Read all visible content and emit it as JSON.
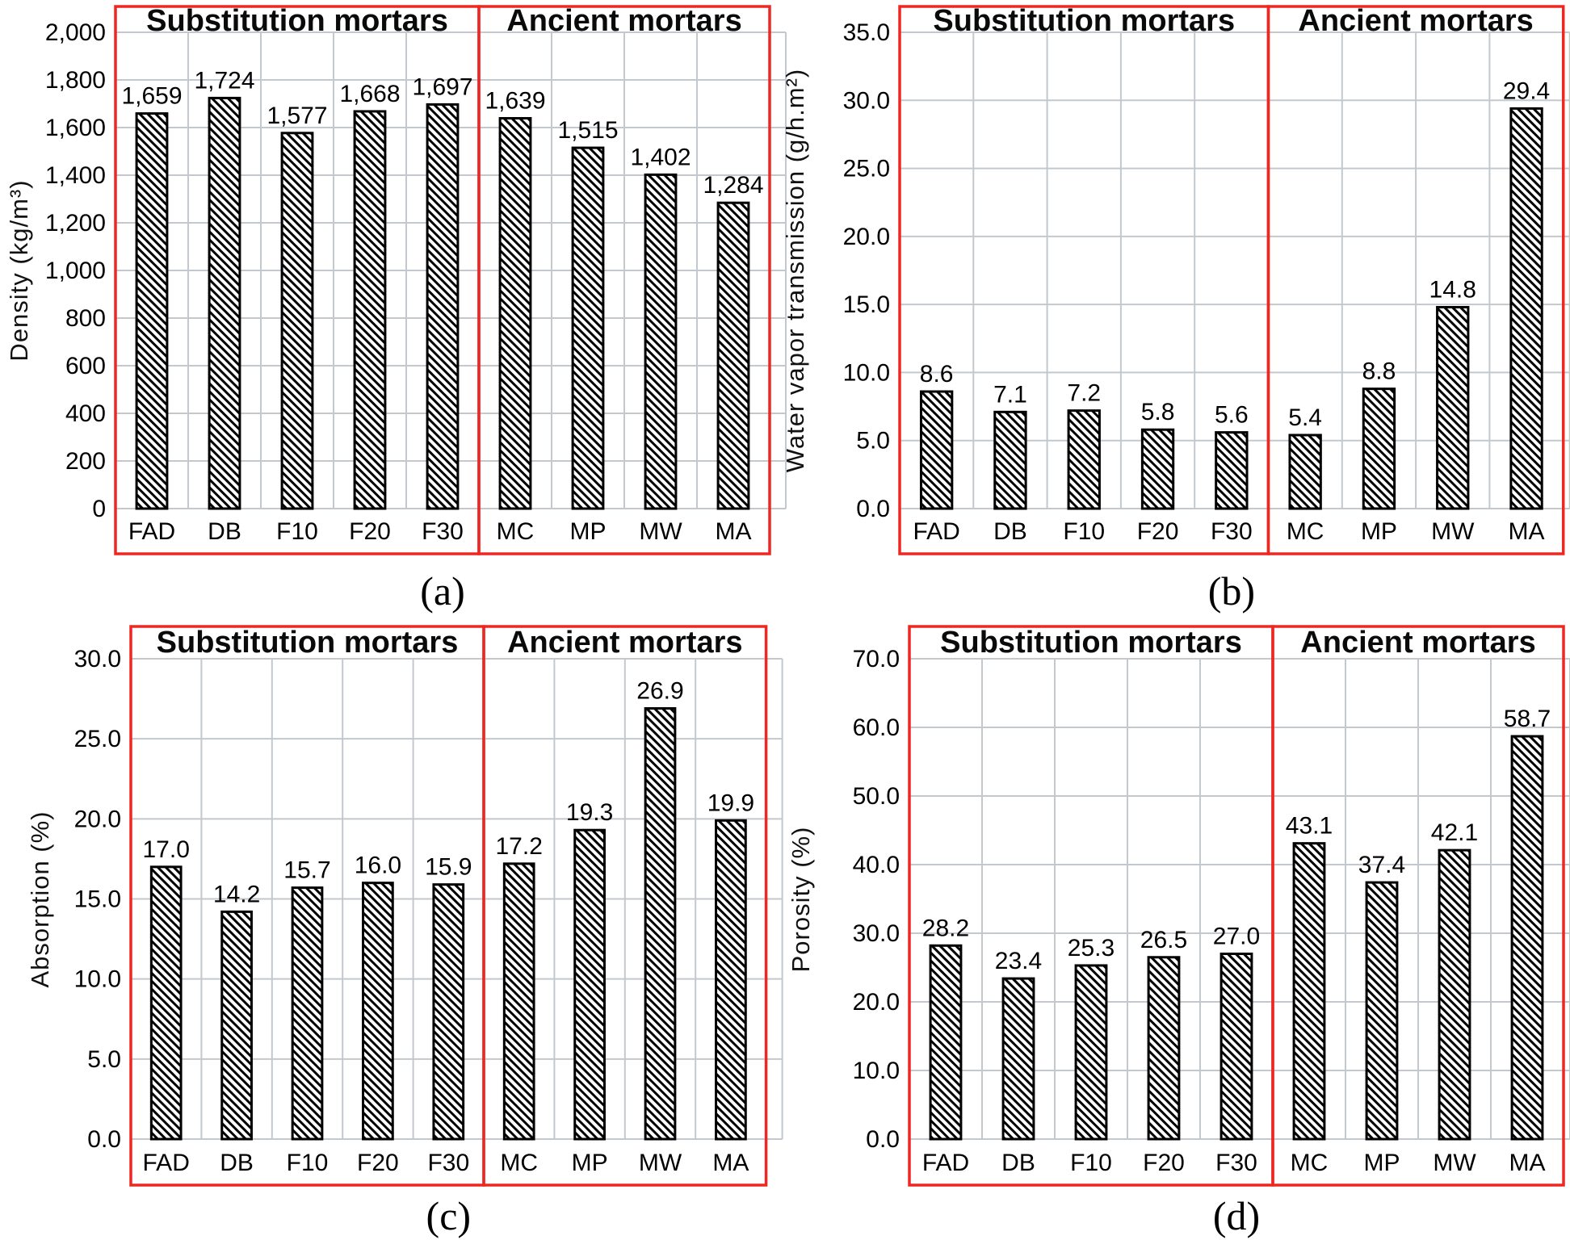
{
  "figure": {
    "groups": [
      {
        "label": "Substitution mortars",
        "categories": [
          "FAD",
          "DB",
          "F10",
          "F20",
          "F30"
        ]
      },
      {
        "label": "Ancient mortars",
        "categories": [
          "MC",
          "MP",
          "MW",
          "MA"
        ]
      }
    ],
    "colors": {
      "group_box_red": "#ee2722",
      "gridline_gray": "#c2c8ce",
      "bar_hatch_black": "#000000",
      "background": "#ffffff",
      "text": "#000000"
    },
    "captions": [
      "(a)",
      "(b)",
      "(c)",
      "(d)"
    ]
  },
  "chart_data": [
    {
      "type": "bar",
      "caption": "(a)",
      "ylabel": "Density (kg/m³)",
      "group_labels": [
        "Substitution mortars",
        "Ancient mortars"
      ],
      "group_sizes": [
        5,
        4
      ],
      "categories": [
        "FAD",
        "DB",
        "F10",
        "F20",
        "F30",
        "MC",
        "MP",
        "MW",
        "MA"
      ],
      "values": [
        1659,
        1724,
        1577,
        1668,
        1697,
        1639,
        1515,
        1402,
        1284
      ],
      "value_labels": [
        "1,659",
        "1,724",
        "1,577",
        "1,668",
        "1,697",
        "1,639",
        "1,515",
        "1,402",
        "1,284"
      ],
      "ylim": [
        0,
        2000
      ],
      "ytick_step": 200,
      "ytick_labels": [
        "2,000",
        "1,800",
        "1,600",
        "1,400",
        "1,200",
        "1,000",
        "800",
        "600",
        "400",
        "200",
        "0"
      ],
      "grid": true,
      "legend": null,
      "bar_style": "white fill with black diagonal hatch"
    },
    {
      "type": "bar",
      "caption": "(b)",
      "ylabel": "Water vapor transmission (g/h.m²)",
      "group_labels": [
        "Substitution mortars",
        "Ancient mortars"
      ],
      "group_sizes": [
        5,
        4
      ],
      "categories": [
        "FAD",
        "DB",
        "F10",
        "F20",
        "F30",
        "MC",
        "MP",
        "MW",
        "MA"
      ],
      "values": [
        8.6,
        7.1,
        7.2,
        5.8,
        5.6,
        5.4,
        8.8,
        14.8,
        29.4
      ],
      "value_labels": [
        "8.6",
        "7.1",
        "7.2",
        "5.8",
        "5.6",
        "5.4",
        "8.8",
        "14.8",
        "29.4"
      ],
      "ylim": [
        0,
        35
      ],
      "ytick_step": 5,
      "ytick_labels": [
        "35.0",
        "30.0",
        "25.0",
        "20.0",
        "15.0",
        "10.0",
        "5.0",
        "0.0"
      ],
      "grid": true,
      "legend": null,
      "bar_style": "white fill with black diagonal hatch"
    },
    {
      "type": "bar",
      "caption": "(c)",
      "ylabel": "Absorption (%)",
      "group_labels": [
        "Substitution mortars",
        "Ancient mortars"
      ],
      "group_sizes": [
        5,
        4
      ],
      "categories": [
        "FAD",
        "DB",
        "F10",
        "F20",
        "F30",
        "MC",
        "MP",
        "MW",
        "MA"
      ],
      "values": [
        17.0,
        14.2,
        15.7,
        16.0,
        15.9,
        17.2,
        19.3,
        26.9,
        19.9
      ],
      "value_labels": [
        "17.0",
        "14.2",
        "15.7",
        "16.0",
        "15.9",
        "17.2",
        "19.3",
        "26.9",
        "19.9"
      ],
      "ylim": [
        0,
        30
      ],
      "ytick_step": 5,
      "ytick_labels": [
        "30.0",
        "25.0",
        "20.0",
        "15.0",
        "10.0",
        "5.0",
        "0.0"
      ],
      "grid": true,
      "legend": null,
      "bar_style": "white fill with black diagonal hatch"
    },
    {
      "type": "bar",
      "caption": "(d)",
      "ylabel": "Porosity (%)",
      "group_labels": [
        "Substitution mortars",
        "Ancient mortars"
      ],
      "group_sizes": [
        5,
        4
      ],
      "categories": [
        "FAD",
        "DB",
        "F10",
        "F20",
        "F30",
        "MC",
        "MP",
        "MW",
        "MA"
      ],
      "values": [
        28.2,
        23.4,
        25.3,
        26.5,
        27.0,
        43.1,
        37.4,
        42.1,
        58.7
      ],
      "value_labels": [
        "28.2",
        "23.4",
        "25.3",
        "26.5",
        "27.0",
        "43.1",
        "37.4",
        "42.1",
        "58.7"
      ],
      "ylim": [
        0,
        70
      ],
      "ytick_step": 10,
      "ytick_labels": [
        "70.0",
        "60.0",
        "50.0",
        "40.0",
        "30.0",
        "20.0",
        "10.0",
        "0.0"
      ],
      "grid": true,
      "legend": null,
      "bar_style": "white fill with black diagonal hatch"
    }
  ]
}
